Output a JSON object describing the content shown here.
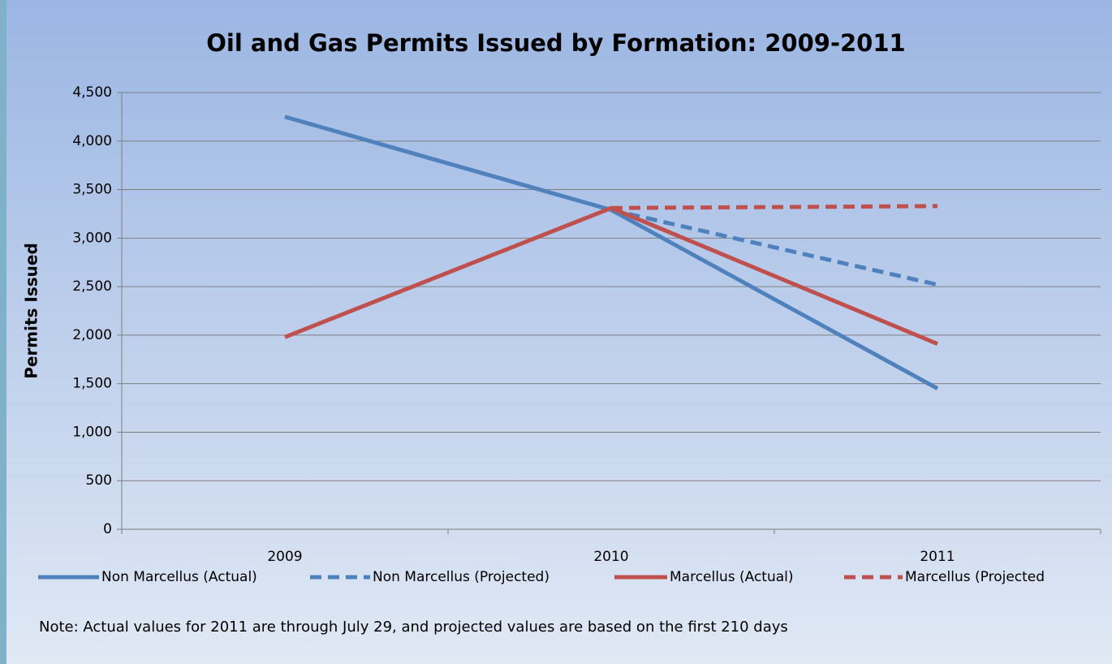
{
  "chart_data": {
    "type": "line",
    "title": "Oil and Gas Permits Issued by Formation:  2009-2011",
    "y_label": "Permits Issued",
    "note": "Note:  Actual values for 2011 are through July 29, and projected values are based on the first 210 days",
    "categories": [
      "2009",
      "2010",
      "2011"
    ],
    "series": [
      {
        "name": "Non Marcellus (Actual)",
        "color": "#4f81bd",
        "dashed": false,
        "values": [
          4250,
          3290,
          1450
        ]
      },
      {
        "name": "Non Marcellus (Projected)",
        "color": "#4f81bd",
        "dashed": true,
        "values": [
          null,
          3290,
          2520
        ]
      },
      {
        "name": "Marcellus (Actual)",
        "color": "#c0504d",
        "dashed": false,
        "values": [
          1980,
          3310,
          1910
        ]
      },
      {
        "name": "Marcellus (Projected",
        "color": "#c0504d",
        "dashed": true,
        "values": [
          null,
          3310,
          3330
        ]
      }
    ],
    "ylim": [
      0,
      4500
    ],
    "yticks": [
      0,
      500,
      {
        "value": 1000,
        "label": "1,000"
      },
      {
        "value": 1500,
        "label": "1,500"
      },
      {
        "value": 2000,
        "label": "2,000"
      },
      {
        "value": 2500,
        "label": "2,500"
      },
      {
        "value": 3000,
        "label": "3,000"
      },
      {
        "value": 3500,
        "label": "3,500"
      },
      {
        "value": 4000,
        "label": "4,000"
      },
      {
        "value": 4500,
        "label": "4,500"
      }
    ],
    "grid": true,
    "legend": "bottom"
  }
}
